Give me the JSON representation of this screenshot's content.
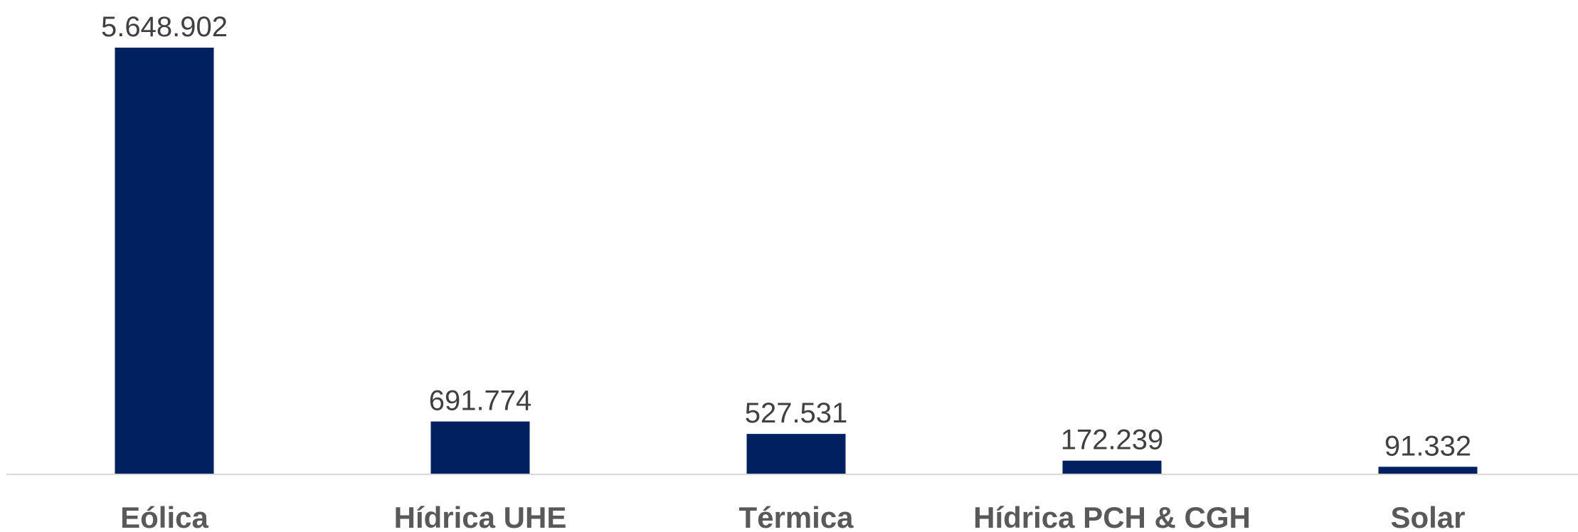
{
  "chart_data": {
    "type": "bar",
    "categories": [
      "Eólica",
      "Hídrica UHE",
      "Térmica",
      "Hídrica PCH & CGH",
      "Solar"
    ],
    "values": [
      5648902,
      691774,
      527531,
      172239,
      91332
    ],
    "data_labels": [
      "5.648.902",
      "691.774",
      "527.531",
      "172.239",
      "91.332"
    ],
    "title": "",
    "xlabel": "",
    "ylabel": "",
    "ylim": [
      0,
      5648902
    ],
    "grid": false,
    "legend": "none",
    "bar_color": "#002060",
    "baseline_color": "#d9d9d9"
  }
}
